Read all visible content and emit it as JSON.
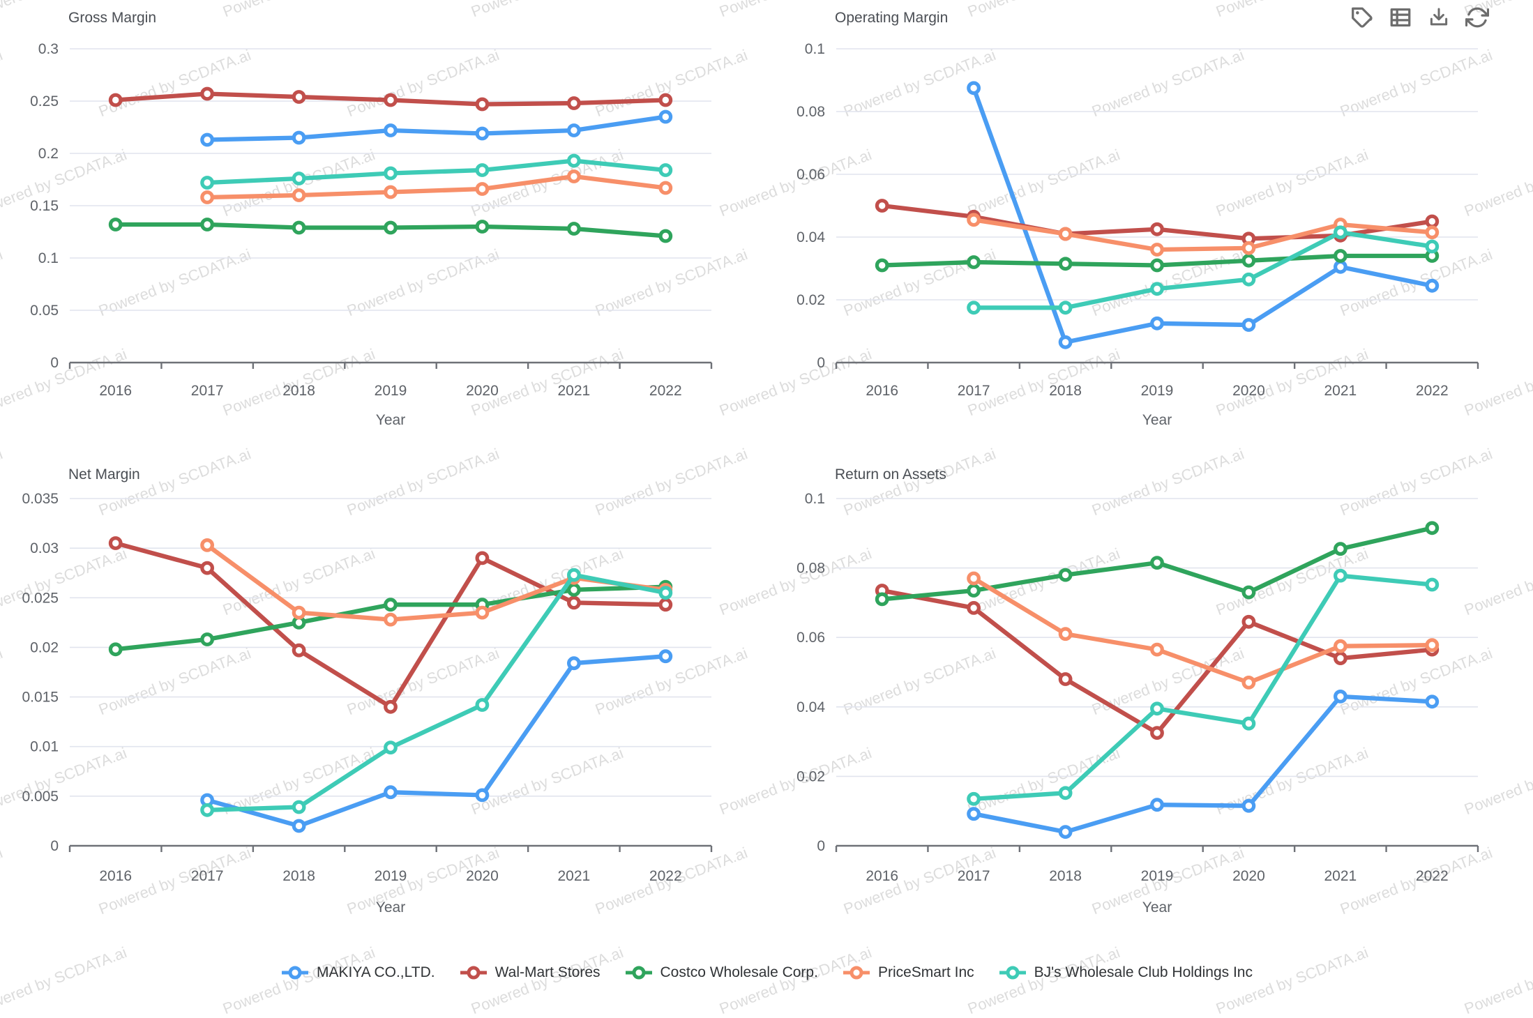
{
  "watermark": {
    "text": "Powered by SCDATA.ai"
  },
  "toolbar": {
    "icons": [
      "tag-icon",
      "data-table-icon",
      "download-icon",
      "refresh-icon"
    ]
  },
  "palette": {
    "blue": "#4A9DF3",
    "red": "#C14F4B",
    "green": "#2FA45C",
    "orange": "#F78F69",
    "teal": "#3ECBB6",
    "gridline": "#E1E4EE",
    "axis": "#6E7177",
    "tick_text": "#5E6268",
    "title_text": "#4A4E54"
  },
  "legend": {
    "position": "bottom",
    "items": [
      {
        "label": "MAKIYA CO.,LTD.",
        "color": "#4A9DF3"
      },
      {
        "label": "Wal-Mart Stores",
        "color": "#C14F4B"
      },
      {
        "label": "Costco Wholesale Corp.",
        "color": "#2FA45C"
      },
      {
        "label": "PriceSmart Inc",
        "color": "#F78F69"
      },
      {
        "label": "BJ's Wholesale Club Holdings Inc",
        "color": "#3ECBB6"
      }
    ]
  },
  "chart_data": [
    {
      "type": "line",
      "title": "Gross Margin",
      "xlabel": "Year",
      "grid": true,
      "categories": [
        "2016",
        "2017",
        "2018",
        "2019",
        "2020",
        "2021",
        "2022"
      ],
      "ylim": [
        0,
        0.3
      ],
      "yticks": [
        0,
        0.05,
        0.1,
        0.15,
        0.2,
        0.25,
        0.3
      ],
      "series": [
        {
          "name": "MAKIYA CO.,LTD.",
          "color": "#4A9DF3",
          "values": [
            null,
            0.213,
            0.215,
            0.222,
            0.219,
            0.222,
            0.235
          ]
        },
        {
          "name": "Wal-Mart Stores",
          "color": "#C14F4B",
          "values": [
            0.251,
            0.257,
            0.254,
            0.251,
            0.247,
            0.248,
            0.251
          ]
        },
        {
          "name": "Costco Wholesale Corp.",
          "color": "#2FA45C",
          "values": [
            0.132,
            0.132,
            0.129,
            0.129,
            0.13,
            0.128,
            0.121
          ]
        },
        {
          "name": "PriceSmart Inc",
          "color": "#F78F69",
          "values": [
            null,
            0.158,
            0.16,
            0.163,
            0.166,
            0.178,
            0.167
          ]
        },
        {
          "name": "BJ's Wholesale Club Holdings Inc",
          "color": "#3ECBB6",
          "values": [
            null,
            0.172,
            0.176,
            0.181,
            0.184,
            0.193,
            0.184
          ]
        }
      ]
    },
    {
      "type": "line",
      "title": "Operating Margin",
      "xlabel": "Year",
      "grid": true,
      "categories": [
        "2016",
        "2017",
        "2018",
        "2019",
        "2020",
        "2021",
        "2022"
      ],
      "ylim": [
        0,
        0.1
      ],
      "yticks": [
        0,
        0.02,
        0.04,
        0.06,
        0.08,
        0.1
      ],
      "series": [
        {
          "name": "MAKIYA CO.,LTD.",
          "color": "#4A9DF3",
          "values": [
            null,
            0.0875,
            0.0065,
            0.0125,
            0.012,
            0.0305,
            0.0245
          ]
        },
        {
          "name": "Wal-Mart Stores",
          "color": "#C14F4B",
          "values": [
            0.05,
            0.0465,
            0.041,
            0.0425,
            0.0395,
            0.0405,
            0.045
          ]
        },
        {
          "name": "Costco Wholesale Corp.",
          "color": "#2FA45C",
          "values": [
            0.031,
            0.032,
            0.0315,
            0.031,
            0.0325,
            0.034,
            0.034
          ]
        },
        {
          "name": "PriceSmart Inc",
          "color": "#F78F69",
          "values": [
            null,
            0.0455,
            0.041,
            0.036,
            0.0365,
            0.044,
            0.0415
          ]
        },
        {
          "name": "BJ's Wholesale Club Holdings Inc",
          "color": "#3ECBB6",
          "values": [
            null,
            0.0175,
            0.0175,
            0.0235,
            0.0265,
            0.0415,
            0.037
          ]
        }
      ]
    },
    {
      "type": "line",
      "title": "Net Margin",
      "xlabel": "Year",
      "grid": true,
      "categories": [
        "2016",
        "2017",
        "2018",
        "2019",
        "2020",
        "2021",
        "2022"
      ],
      "ylim": [
        0,
        0.035
      ],
      "yticks": [
        0,
        0.005,
        0.01,
        0.015,
        0.02,
        0.025,
        0.03,
        0.035
      ],
      "series": [
        {
          "name": "MAKIYA CO.,LTD.",
          "color": "#4A9DF3",
          "values": [
            null,
            0.0046,
            0.002,
            0.0054,
            0.0051,
            0.0184,
            0.0191
          ]
        },
        {
          "name": "Wal-Mart Stores",
          "color": "#C14F4B",
          "values": [
            0.0305,
            0.028,
            0.0197,
            0.014,
            0.029,
            0.0245,
            0.0243
          ]
        },
        {
          "name": "Costco Wholesale Corp.",
          "color": "#2FA45C",
          "values": [
            0.0198,
            0.0208,
            0.0225,
            0.0243,
            0.0243,
            0.0258,
            0.0261
          ]
        },
        {
          "name": "PriceSmart Inc",
          "color": "#F78F69",
          "values": [
            null,
            0.0303,
            0.0235,
            0.0228,
            0.0235,
            0.027,
            0.0258
          ]
        },
        {
          "name": "BJ's Wholesale Club Holdings Inc",
          "color": "#3ECBB6",
          "values": [
            null,
            0.0036,
            0.0039,
            0.0099,
            0.0142,
            0.0273,
            0.0255
          ]
        }
      ]
    },
    {
      "type": "line",
      "title": "Return on Assets",
      "xlabel": "Year",
      "grid": true,
      "categories": [
        "2016",
        "2017",
        "2018",
        "2019",
        "2020",
        "2021",
        "2022"
      ],
      "ylim": [
        0,
        0.1
      ],
      "yticks": [
        0,
        0.02,
        0.04,
        0.06,
        0.08,
        0.1
      ],
      "series": [
        {
          "name": "MAKIYA CO.,LTD.",
          "color": "#4A9DF3",
          "values": [
            null,
            0.0092,
            0.004,
            0.0118,
            0.0115,
            0.043,
            0.0415
          ]
        },
        {
          "name": "Wal-Mart Stores",
          "color": "#C14F4B",
          "values": [
            0.0735,
            0.0685,
            0.048,
            0.0325,
            0.0645,
            0.054,
            0.0565
          ]
        },
        {
          "name": "Costco Wholesale Corp.",
          "color": "#2FA45C",
          "values": [
            0.071,
            0.0735,
            0.078,
            0.0815,
            0.073,
            0.0855,
            0.0915
          ]
        },
        {
          "name": "PriceSmart Inc",
          "color": "#F78F69",
          "values": [
            null,
            0.077,
            0.061,
            0.0565,
            0.047,
            0.0575,
            0.0578
          ]
        },
        {
          "name": "BJ's Wholesale Club Holdings Inc",
          "color": "#3ECBB6",
          "values": [
            null,
            0.0135,
            0.0152,
            0.0395,
            0.0352,
            0.0778,
            0.0752
          ]
        }
      ]
    }
  ]
}
